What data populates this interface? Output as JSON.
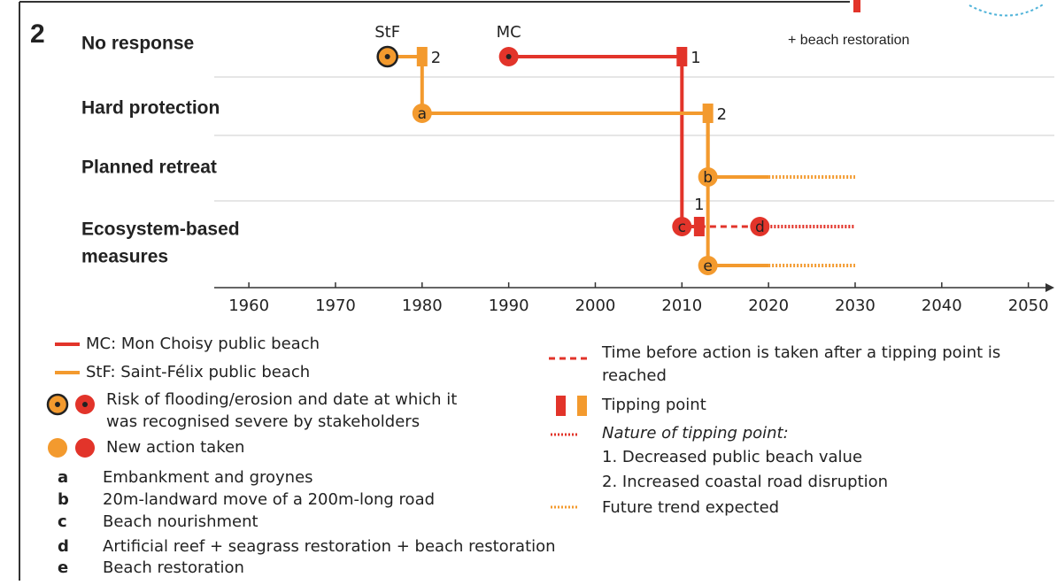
{
  "panel_number": "2",
  "annotation": "+ beach restoration",
  "sites": {
    "MC": "#e2342a",
    "StF": "#f39a2e"
  },
  "axis": {
    "xlim": [
      1956,
      2053
    ],
    "ticks": [
      1960,
      1970,
      1980,
      1990,
      2000,
      2010,
      2020,
      2030,
      2040,
      2050
    ]
  },
  "rows": [
    {
      "label": [
        "No response"
      ],
      "tracks": [
        {
          "markers": [
            {
              "kind": "risk",
              "site": "StF",
              "year": 1976,
              "caption": "StF"
            },
            {
              "kind": "tipping",
              "site": "StF",
              "year": 1980,
              "caption": "2"
            },
            {
              "kind": "risk",
              "site": "MC",
              "year": 1990,
              "caption": "MC"
            },
            {
              "kind": "tipping",
              "site": "MC",
              "year": 2010,
              "caption": "1"
            }
          ]
        }
      ]
    },
    {
      "label": [
        "Hard protection"
      ],
      "tracks": [
        {
          "markers": [
            {
              "kind": "action",
              "site": "StF",
              "year": 1980,
              "caption": "a"
            },
            {
              "kind": "tipping",
              "site": "StF",
              "year": 2013,
              "caption": "2"
            }
          ]
        }
      ]
    },
    {
      "label": [
        "Planned retreat"
      ],
      "tracks": [
        {
          "markers": [
            {
              "kind": "action",
              "site": "StF",
              "year": 2013,
              "caption": "b"
            }
          ],
          "tail": {
            "solid_to": 2020,
            "dotted_to": 2030
          }
        }
      ]
    },
    {
      "label": [
        "Ecosystem-based",
        "measures"
      ],
      "tracks": [
        {
          "markers": [
            {
              "kind": "action",
              "site": "MC",
              "year": 2010,
              "caption": "c"
            },
            {
              "kind": "tipping",
              "site": "MC",
              "year": 2012,
              "caption": "1"
            },
            {
              "kind": "action",
              "site": "MC",
              "year": 2019,
              "caption": "d"
            }
          ],
          "tail": {
            "dotted_to": 2030
          }
        },
        {
          "markers": [
            {
              "kind": "action",
              "site": "StF",
              "year": 2013,
              "caption": "e"
            }
          ],
          "tail": {
            "solid_to": 2020,
            "dotted_to": 2030
          }
        }
      ]
    }
  ],
  "legend": {
    "mc": "MC: Mon Choisy public beach",
    "stf": "StF: Saint-Félix public beach",
    "risk": [
      "Risk of flooding/erosion and date at which it",
      "was recognised severe by stakeholders"
    ],
    "action": "New action taken",
    "letters": [
      {
        "key": "a",
        "text": "Embankment and groynes"
      },
      {
        "key": "b",
        "text": "20m-landward move of a 200m-long road"
      },
      {
        "key": "c",
        "text": "Beach nourishment"
      },
      {
        "key": "d",
        "text": "Artificial reef + seagrass restoration + beach restoration"
      },
      {
        "key": "e",
        "text": "Beach restoration"
      }
    ],
    "delay": [
      "Time before action is taken after a tipping point is",
      "reached"
    ],
    "tipping": "Tipping point",
    "nature_title": "Nature of tipping point:",
    "nature": [
      "1. Decreased public beach value",
      "2. Increased coastal road disruption"
    ],
    "future": "Future trend expected"
  }
}
